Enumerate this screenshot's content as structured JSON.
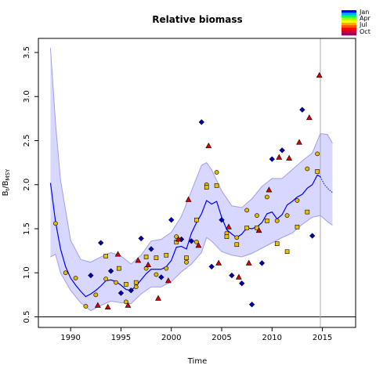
{
  "chart_data": {
    "type": "scatter",
    "title": "Relative biomass",
    "xlabel": "Time",
    "ylabel": "B_t/B_MSY",
    "ylabel_main": "B",
    "ylabel_sub1": "t",
    "ylabel_mid": "/B",
    "ylabel_sub2": "MSY",
    "xlim": [
      1986.8,
      2018.3
    ],
    "ylim": [
      0.38,
      3.66
    ],
    "xticks": [
      1990,
      1995,
      2000,
      2005,
      2010,
      2015
    ],
    "xtick_labels": [
      "1990",
      "1995",
      "2000",
      "2005",
      "2010",
      "2015"
    ],
    "yticks": [
      0.5,
      1.0,
      1.5,
      2.0,
      2.5,
      3.0,
      3.5
    ],
    "ytick_labels": [
      "0.5",
      "1.0",
      "1.5",
      "2.0",
      "2.5",
      "3.0",
      "3.5"
    ],
    "reference_line_y": 0.5,
    "vertical_line_x": 2014.8,
    "legend": {
      "position": "top-right",
      "labels": [
        "Jan",
        "Apr",
        "Jul",
        "Oct"
      ],
      "colors": [
        "#0000ff",
        "#00aaff",
        "#00ff66",
        "#aaff00",
        "#ffff00",
        "#ffaa00",
        "#ff5500",
        "#ff0000",
        "#cc0033",
        "#990066"
      ]
    },
    "colors": {
      "line": "#0000ff",
      "band": "#d7d7ff",
      "band_stroke": "#9f9ff2",
      "diamond": "#0000aa",
      "circle": "#e6b800",
      "square": "#f0c000",
      "triangle": "#dd0000"
    },
    "median": {
      "x": [
        1988.0,
        1988.5,
        1989.0,
        1989.5,
        1990.0,
        1990.5,
        1991.0,
        1991.5,
        1992.0,
        1992.5,
        1993.0,
        1993.5,
        1994.0,
        1994.5,
        1995.0,
        1995.5,
        1996.0,
        1996.5,
        1997.0,
        1997.5,
        1998.0,
        1998.5,
        1999.0,
        1999.5,
        2000.0,
        2000.5,
        2001.0,
        2001.5,
        2002.0,
        2002.5,
        2003.0,
        2003.5,
        2004.0,
        2004.5,
        2005.0,
        2005.5,
        2006.0,
        2006.5,
        2007.0,
        2007.5,
        2008.0,
        2008.5,
        2009.0,
        2009.5,
        2010.0,
        2010.5,
        2011.0,
        2011.5,
        2012.0,
        2012.5,
        2013.0,
        2013.5,
        2014.0,
        2014.5,
        2014.8
      ],
      "y": [
        2.02,
        1.58,
        1.27,
        1.07,
        0.94,
        0.86,
        0.79,
        0.73,
        0.76,
        0.8,
        0.85,
        0.91,
        0.92,
        0.9,
        0.86,
        0.81,
        0.8,
        0.85,
        0.92,
        0.99,
        1.04,
        1.04,
        1.04,
        1.07,
        1.14,
        1.29,
        1.3,
        1.27,
        1.45,
        1.57,
        1.67,
        1.82,
        1.78,
        1.81,
        1.63,
        1.49,
        1.44,
        1.4,
        1.44,
        1.51,
        1.5,
        1.52,
        1.57,
        1.67,
        1.69,
        1.61,
        1.66,
        1.77,
        1.81,
        1.86,
        1.89,
        1.96,
        2.0,
        2.11,
        2.09
      ]
    },
    "projection": {
      "x": [
        2014.8,
        2015.2,
        2015.6,
        2016.0
      ],
      "y": [
        2.09,
        2.0,
        1.95,
        1.91
      ]
    },
    "band_upper": {
      "x": [
        1988.0,
        1988.5,
        1989.0,
        1990.0,
        1991.0,
        1992.0,
        1993.0,
        1994.0,
        1995.0,
        1996.0,
        1997.0,
        1998.0,
        1999.0,
        2000.0,
        2001.0,
        2002.0,
        2003.0,
        2003.5,
        2004.0,
        2005.0,
        2006.0,
        2007.0,
        2008.0,
        2009.0,
        2010.0,
        2011.0,
        2012.0,
        2013.0,
        2014.0,
        2014.8,
        2015.5,
        2016.0
      ],
      "y": [
        3.55,
        2.7,
        2.05,
        1.37,
        1.15,
        1.12,
        1.18,
        1.23,
        1.19,
        1.1,
        1.2,
        1.36,
        1.38,
        1.46,
        1.64,
        1.93,
        2.22,
        2.25,
        2.17,
        1.93,
        1.76,
        1.74,
        1.84,
        1.98,
        2.07,
        2.07,
        2.17,
        2.27,
        2.36,
        2.58,
        2.57,
        2.47
      ]
    },
    "band_lower": {
      "x": [
        1988.0,
        1988.5,
        1989.0,
        1990.0,
        1991.0,
        1992.0,
        1993.0,
        1994.0,
        1995.0,
        1996.0,
        1997.0,
        1998.0,
        1999.0,
        2000.0,
        2001.0,
        2002.0,
        2003.0,
        2003.5,
        2004.0,
        2005.0,
        2006.0,
        2007.0,
        2008.0,
        2009.0,
        2010.0,
        2011.0,
        2012.0,
        2013.0,
        2014.0,
        2014.8,
        2015.5,
        2016.0
      ],
      "y": [
        1.18,
        1.21,
        1.0,
        0.8,
        0.66,
        0.57,
        0.63,
        0.68,
        0.66,
        0.65,
        0.76,
        0.84,
        0.84,
        0.9,
        1.01,
        1.1,
        1.23,
        1.4,
        1.36,
        1.24,
        1.2,
        1.18,
        1.22,
        1.28,
        1.34,
        1.4,
        1.45,
        1.55,
        1.63,
        1.65,
        1.58,
        1.54
      ]
    },
    "series": [
      {
        "marker": "diamond",
        "x": [
          1992.0,
          1993.0,
          1994.0,
          1995.0,
          1996.0,
          1997.0,
          1998.0,
          1999.0,
          2000.0,
          2001.0,
          2002.0,
          2003.0,
          2004.0,
          2005.0,
          2006.0,
          2007.0,
          2008.0,
          2009.0,
          2010.0,
          2011.0,
          2013.0,
          2014.0
        ],
        "y": [
          0.97,
          1.34,
          1.02,
          0.77,
          0.8,
          1.39,
          1.27,
          0.95,
          1.6,
          1.38,
          1.36,
          2.71,
          1.07,
          1.6,
          0.97,
          0.88,
          0.64,
          1.11,
          2.29,
          2.39,
          2.85,
          1.42
        ]
      },
      {
        "marker": "circle",
        "x": [
          1988.5,
          1989.5,
          1990.5,
          1991.5,
          1992.5,
          1993.5,
          1994.5,
          1995.5,
          1996.5,
          1997.5,
          1998.5,
          1999.5,
          2000.5,
          2001.5,
          2002.5,
          2003.5,
          2004.5,
          2005.5,
          2006.5,
          2007.5,
          2008.5,
          2009.5,
          2010.5,
          2011.5,
          2012.5,
          2013.5,
          2014.5
        ],
        "y": [
          1.56,
          1.0,
          0.94,
          0.62,
          0.75,
          0.93,
          0.89,
          0.67,
          0.84,
          1.05,
          0.98,
          1.05,
          1.41,
          1.12,
          1.35,
          2.0,
          2.14,
          1.45,
          1.4,
          1.71,
          1.65,
          1.86,
          1.59,
          1.65,
          1.82,
          2.18,
          2.35
        ]
      },
      {
        "marker": "square",
        "x": [
          1993.5,
          1994.8,
          1995.5,
          1996.5,
          1997.5,
          1998.5,
          1999.5,
          2000.5,
          2001.5,
          2002.5,
          2003.5,
          2004.5,
          2005.5,
          2006.5,
          2007.5,
          2008.5,
          2009.5,
          2010.5,
          2011.5,
          2012.5,
          2013.5,
          2014.5
        ],
        "y": [
          1.19,
          1.05,
          0.87,
          0.89,
          1.18,
          1.17,
          1.2,
          1.35,
          1.17,
          1.6,
          1.97,
          1.99,
          1.41,
          1.32,
          1.51,
          1.51,
          1.59,
          1.33,
          1.24,
          1.52,
          1.69,
          2.15
        ]
      },
      {
        "marker": "triangle",
        "x": [
          1992.7,
          1993.7,
          1994.7,
          1995.7,
          1996.7,
          1997.7,
          1998.7,
          1999.7,
          2000.7,
          2001.7,
          2002.7,
          2003.7,
          2004.7,
          2005.7,
          2006.7,
          2007.7,
          2008.7,
          2009.7,
          2010.7,
          2011.7,
          2012.7,
          2013.7,
          2014.7
        ],
        "y": [
          0.63,
          0.61,
          1.21,
          0.63,
          1.14,
          1.09,
          0.71,
          0.91,
          1.38,
          1.83,
          1.31,
          2.44,
          1.11,
          1.52,
          0.95,
          1.11,
          1.48,
          1.94,
          2.31,
          2.3,
          2.48,
          2.76,
          3.24
        ]
      }
    ]
  }
}
